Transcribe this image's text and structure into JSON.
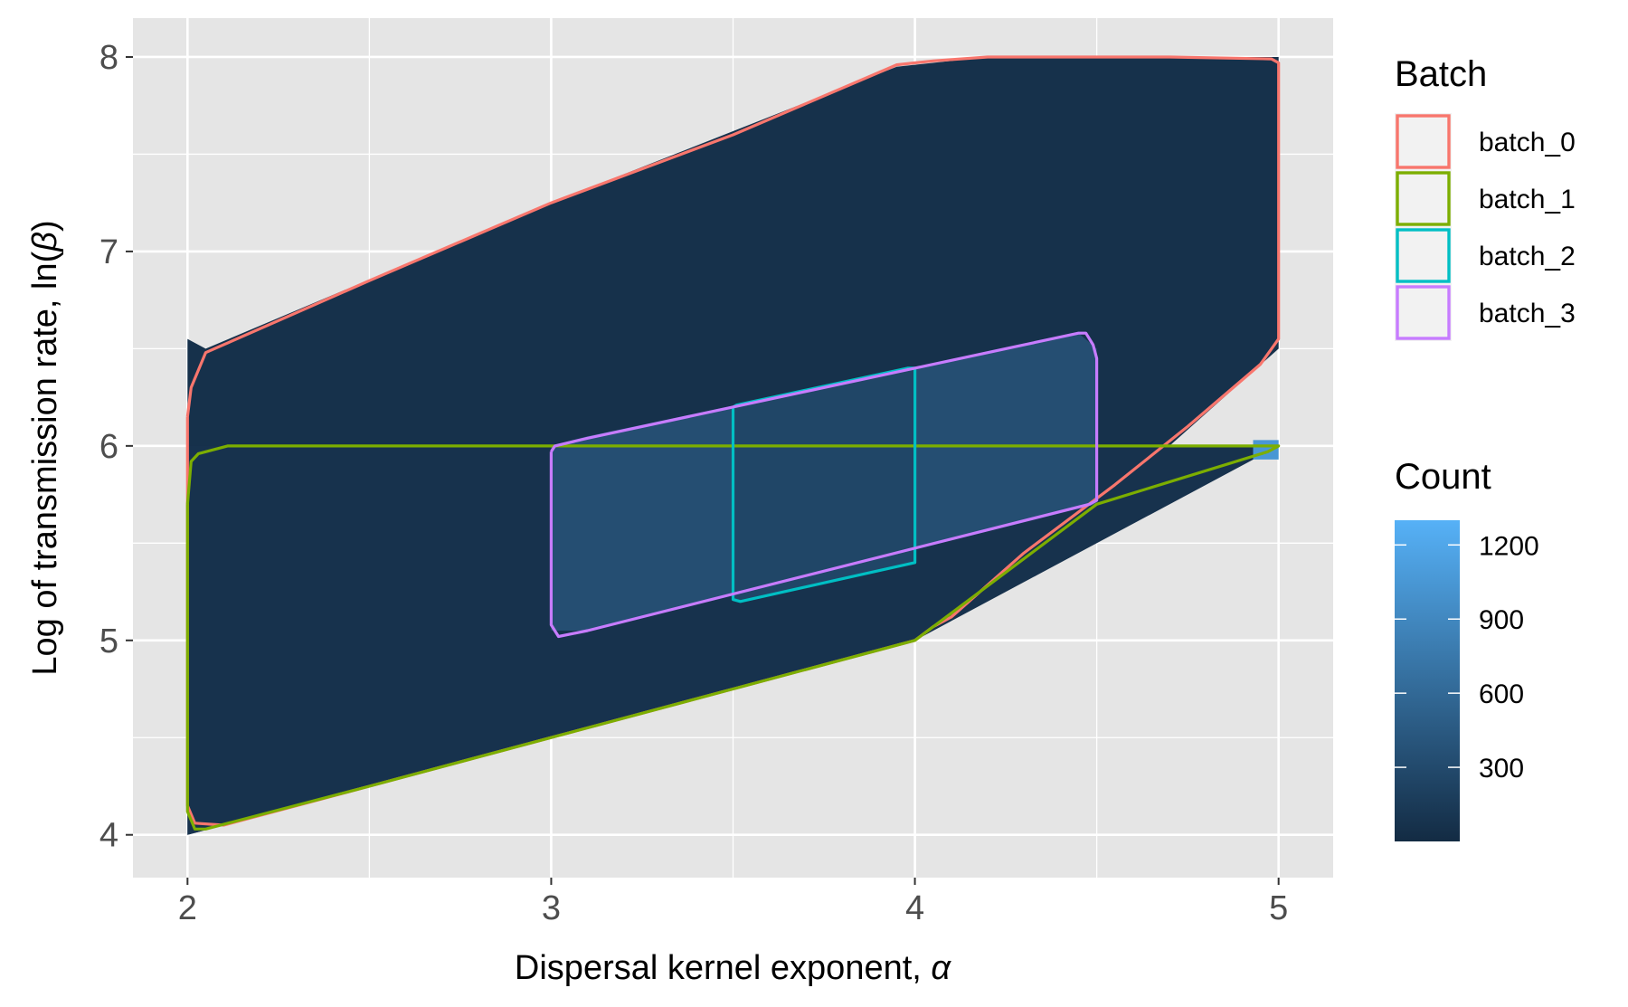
{
  "chart_data": {
    "type": "heatmap",
    "xlabel_text": "Dispersal kernel exponent, ",
    "xlabel_symbol": "α",
    "ylabel_text": "Log of transmission rate, ln(",
    "ylabel_symbol": "β",
    "ylabel_close": ")",
    "xlim": [
      1.85,
      5.15
    ],
    "ylim": [
      3.78,
      8.2
    ],
    "x_ticks": [
      2,
      3,
      4,
      5
    ],
    "x_tick_labels": [
      "2",
      "3",
      "4",
      "5"
    ],
    "y_ticks": [
      4,
      5,
      6,
      7,
      8
    ],
    "y_tick_labels": [
      "4",
      "5",
      "6",
      "7",
      "8"
    ],
    "grid": true,
    "panel_background": "#e5e5e5",
    "legend_position": "right",
    "batch_legend": {
      "title": "Batch",
      "items": [
        {
          "label": "batch_0",
          "color": "#F8766D"
        },
        {
          "label": "batch_1",
          "color": "#7CAE00"
        },
        {
          "label": "batch_2",
          "color": "#00BFC4"
        },
        {
          "label": "batch_3",
          "color": "#C77CFF"
        }
      ]
    },
    "count_legend": {
      "title": "Count",
      "range": [
        0,
        1300
      ],
      "breaks": [
        300,
        600,
        900,
        1200
      ],
      "break_labels": [
        "300",
        "600",
        "900",
        "1200"
      ],
      "low_color": "#132B43",
      "high_color": "#56B1F7"
    },
    "density_regions": [
      {
        "name": "batch_0 region",
        "count": 60,
        "polygon": [
          [
            2,
            6.55
          ],
          [
            2.05,
            6.5
          ],
          [
            3,
            7.25
          ],
          [
            3.95,
            7.95
          ],
          [
            4.2,
            8.0
          ],
          [
            5,
            8.0
          ],
          [
            5,
            6.5
          ],
          [
            4.7,
            6.0
          ],
          [
            4.1,
            5.1
          ],
          [
            4,
            5.0
          ],
          [
            2.1,
            4.05
          ],
          [
            2,
            4.0
          ]
        ]
      },
      {
        "name": "batch_1 region",
        "count": 70,
        "polygon": [
          [
            2,
            6.0
          ],
          [
            5,
            6.0
          ],
          [
            4,
            5.0
          ],
          [
            2.1,
            4.05
          ],
          [
            2,
            4.0
          ]
        ]
      },
      {
        "name": "batch_3 region",
        "count": 340,
        "polygon": [
          [
            3,
            6.0
          ],
          [
            3.1,
            6.05
          ],
          [
            4.45,
            6.58
          ],
          [
            4.5,
            6.5
          ],
          [
            4.5,
            5.7
          ],
          [
            3.1,
            5.05
          ],
          [
            3,
            5.05
          ]
        ]
      },
      {
        "name": "batch_2 region",
        "count": 260,
        "polygon": [
          [
            3.5,
            6.2
          ],
          [
            4,
            6.4
          ],
          [
            4,
            5.4
          ],
          [
            3.5,
            5.2
          ]
        ]
      },
      {
        "name": "corner cell",
        "count": 1050,
        "polygon": [
          [
            4.93,
            6.03
          ],
          [
            5,
            6.03
          ],
          [
            5,
            5.93
          ],
          [
            4.93,
            5.93
          ]
        ]
      }
    ],
    "series": [
      {
        "name": "batch_0",
        "color": "#F8766D",
        "outline": [
          [
            2,
            6.15
          ],
          [
            2.01,
            6.3
          ],
          [
            2.05,
            6.48
          ],
          [
            2.5,
            6.85
          ],
          [
            3,
            7.25
          ],
          [
            3.5,
            7.6
          ],
          [
            3.95,
            7.96
          ],
          [
            4.05,
            7.98
          ],
          [
            4.2,
            8.0
          ],
          [
            4.45,
            8.0
          ],
          [
            4.7,
            8.0
          ],
          [
            4.98,
            7.99
          ],
          [
            5,
            7.97
          ],
          [
            5,
            6.55
          ],
          [
            4.95,
            6.42
          ],
          [
            4.75,
            6.1
          ],
          [
            4.55,
            5.8
          ],
          [
            4.3,
            5.45
          ],
          [
            4.1,
            5.12
          ],
          [
            4.05,
            5.07
          ],
          [
            4,
            5.0
          ],
          [
            3.5,
            4.75
          ],
          [
            3,
            4.5
          ],
          [
            2.5,
            4.25
          ],
          [
            2.1,
            4.05
          ],
          [
            2.02,
            4.06
          ],
          [
            2,
            4.15
          ],
          [
            2,
            6.15
          ]
        ]
      },
      {
        "name": "batch_1",
        "color": "#7CAE00",
        "outline": [
          [
            2,
            5.7
          ],
          [
            2.01,
            5.92
          ],
          [
            2.03,
            5.96
          ],
          [
            2.11,
            6.0
          ],
          [
            3.5,
            6.0
          ],
          [
            5,
            6.0
          ],
          [
            4.97,
            5.97
          ],
          [
            4.5,
            5.7
          ],
          [
            4,
            5.0
          ],
          [
            3.5,
            4.75
          ],
          [
            3,
            4.5
          ],
          [
            2.5,
            4.25
          ],
          [
            2.05,
            4.03
          ],
          [
            2.02,
            4.03
          ],
          [
            2,
            4.12
          ],
          [
            2,
            5.7
          ]
        ]
      },
      {
        "name": "batch_2",
        "color": "#00BFC4",
        "outline": [
          [
            3.5,
            6.2
          ],
          [
            3.51,
            6.21
          ],
          [
            3.98,
            6.4
          ],
          [
            4,
            6.4
          ],
          [
            4,
            5.4
          ],
          [
            3.52,
            5.2
          ],
          [
            3.5,
            5.21
          ],
          [
            3.5,
            6.2
          ]
        ]
      },
      {
        "name": "batch_3",
        "color": "#C77CFF",
        "outline": [
          [
            3,
            5.97
          ],
          [
            3.01,
            6.0
          ],
          [
            3.1,
            6.04
          ],
          [
            4.45,
            6.58
          ],
          [
            4.47,
            6.58
          ],
          [
            4.49,
            6.52
          ],
          [
            4.5,
            6.45
          ],
          [
            4.5,
            5.72
          ],
          [
            4.48,
            5.7
          ],
          [
            3.1,
            5.05
          ],
          [
            3.02,
            5.02
          ],
          [
            3,
            5.08
          ],
          [
            3,
            5.97
          ]
        ]
      }
    ]
  }
}
